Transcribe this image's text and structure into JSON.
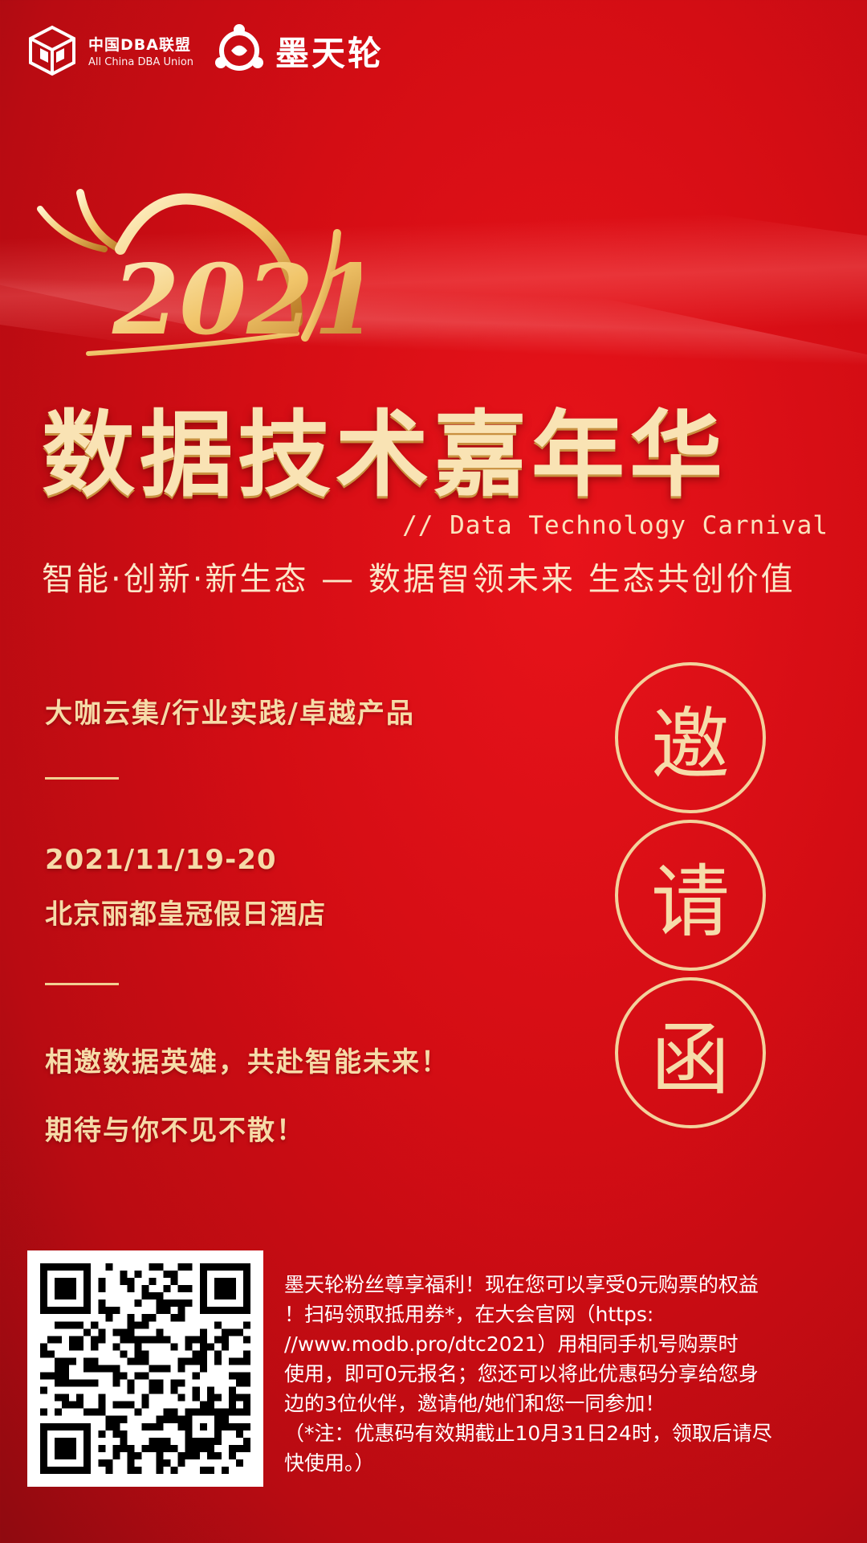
{
  "header": {
    "org1_cn": "中国DBA联盟",
    "org1_en": "All China DBA Union",
    "org2": "墨天轮"
  },
  "hero": {
    "year": "2021",
    "title": "数据技术嘉年华",
    "title_en": "// Data Technology Carnival",
    "slogan": "智能·创新·新生态 — 数据智领未来 生态共创价值"
  },
  "details": {
    "tagline": "大咖云集/行业实践/卓越产品",
    "date": "2021/11/19-20",
    "venue": "北京丽都皇冠假日酒店",
    "invite1": "相邀数据英雄，共赴智能未来！",
    "invite2": "期待与你不见不散！"
  },
  "invitation": {
    "chars": [
      "邀",
      "请",
      "函"
    ]
  },
  "promo": {
    "lines": [
      "墨天轮粉丝尊享福利！现在您可以享受0元购票的权益",
      "！扫码领取抵用券*，在大会官网（https:",
      "//www.modb.pro/dtc2021）用相同手机号购票时",
      "使用，即可0元报名；您还可以将此优惠码分享给您身",
      "边的3位伙伴，邀请他/她们和您一同参加！",
      "（*注：优惠码有效期截止10月31日24时，领取后请尽",
      "快使用。）"
    ]
  },
  "colors": {
    "background": "#d40d14",
    "gold": "#f4d7a1"
  }
}
